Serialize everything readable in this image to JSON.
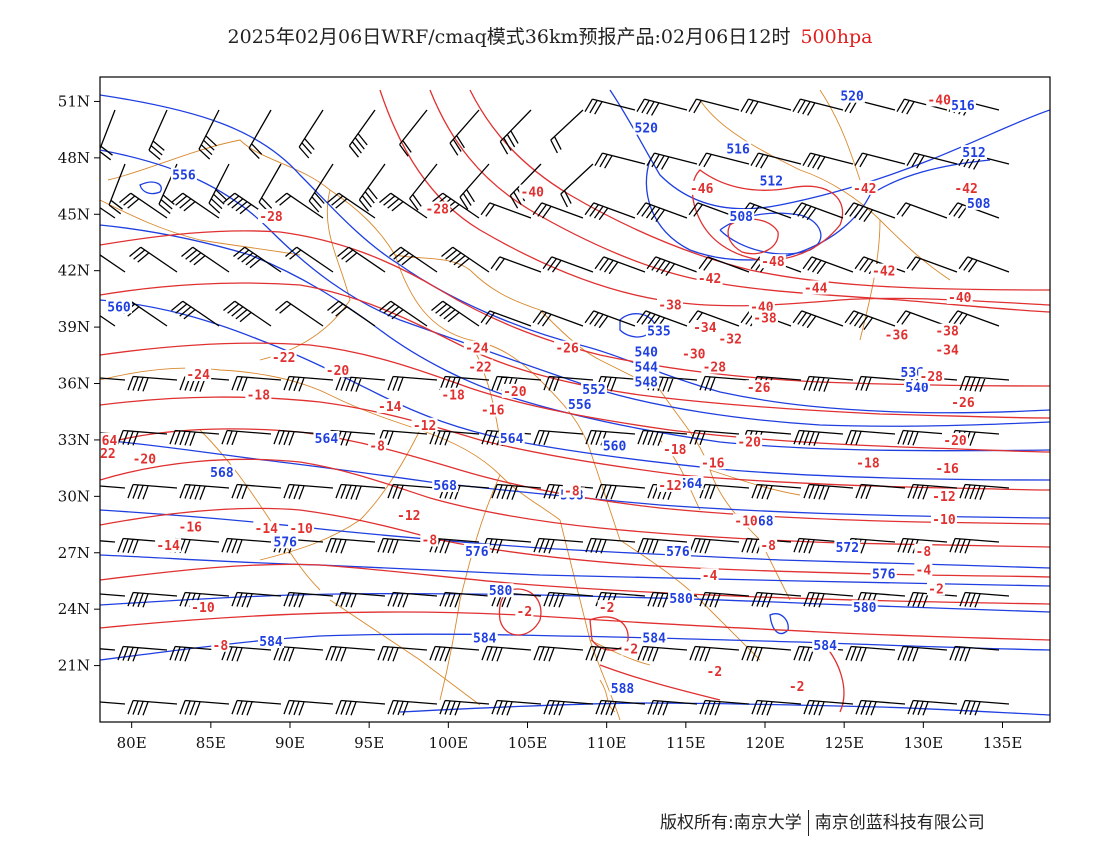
{
  "title": {
    "main": "2025年02月06日WRF/cmaq模式36km预报产品:02月06日12时",
    "level": "500hpa"
  },
  "footer": {
    "copyright": "版权所有:南京大学",
    "company": "南京创蓝科技有限公司"
  },
  "colors": {
    "geopotential": "#1f3fe0",
    "temperature": "#e03030",
    "border": "#d9892e",
    "wind": "#000000"
  },
  "axes": {
    "lat_ticks": [
      "51N",
      "48N",
      "45N",
      "42N",
      "39N",
      "36N",
      "33N",
      "30N",
      "27N",
      "24N",
      "21N"
    ],
    "lon_ticks": [
      "80E",
      "85E",
      "90E",
      "95E",
      "100E",
      "105E",
      "110E",
      "115E",
      "120E",
      "125E",
      "130E",
      "135E"
    ]
  },
  "height_labels": [
    {
      "text": "520",
      "lon": 112.5,
      "lat": 49.5
    },
    {
      "text": "520",
      "lon": 125.5,
      "lat": 51.2
    },
    {
      "text": "516",
      "lon": 132.5,
      "lat": 50.7
    },
    {
      "text": "516",
      "lon": 118.3,
      "lat": 48.4
    },
    {
      "text": "512",
      "lon": 133.2,
      "lat": 48.2
    },
    {
      "text": "512",
      "lon": 120.4,
      "lat": 46.7
    },
    {
      "text": "508",
      "lon": 118.5,
      "lat": 44.8
    },
    {
      "text": "508",
      "lon": 133.5,
      "lat": 45.5
    },
    {
      "text": "556",
      "lon": 83.3,
      "lat": 47.0
    },
    {
      "text": "560",
      "lon": 79.2,
      "lat": 40.0
    },
    {
      "text": "535",
      "lon": 113.3,
      "lat": 38.7
    },
    {
      "text": "540",
      "lon": 112.5,
      "lat": 37.6
    },
    {
      "text": "544",
      "lon": 112.5,
      "lat": 36.8
    },
    {
      "text": "548",
      "lon": 112.5,
      "lat": 36.0
    },
    {
      "text": "552",
      "lon": 109.2,
      "lat": 35.6
    },
    {
      "text": "556",
      "lon": 108.3,
      "lat": 34.8
    },
    {
      "text": "560",
      "lon": 110.5,
      "lat": 32.6
    },
    {
      "text": "564",
      "lon": 92.3,
      "lat": 33.0
    },
    {
      "text": "564",
      "lon": 104.0,
      "lat": 33.0
    },
    {
      "text": "564",
      "lon": 115.3,
      "lat": 30.6
    },
    {
      "text": "568",
      "lon": 85.7,
      "lat": 31.2
    },
    {
      "text": "568",
      "lon": 99.8,
      "lat": 30.5
    },
    {
      "text": "568",
      "lon": 107.8,
      "lat": 30.0
    },
    {
      "text": "568",
      "lon": 119.8,
      "lat": 28.6
    },
    {
      "text": "572",
      "lon": 125.2,
      "lat": 27.2
    },
    {
      "text": "576",
      "lon": 89.7,
      "lat": 27.5
    },
    {
      "text": "576",
      "lon": 101.8,
      "lat": 27.0
    },
    {
      "text": "576",
      "lon": 114.5,
      "lat": 27.0
    },
    {
      "text": "576",
      "lon": 127.5,
      "lat": 25.8
    },
    {
      "text": "580",
      "lon": 103.3,
      "lat": 24.9
    },
    {
      "text": "580",
      "lon": 114.7,
      "lat": 24.5
    },
    {
      "text": "580",
      "lon": 126.3,
      "lat": 24.0
    },
    {
      "text": "584",
      "lon": 88.8,
      "lat": 22.2
    },
    {
      "text": "584",
      "lon": 102.3,
      "lat": 22.4
    },
    {
      "text": "584",
      "lon": 113.0,
      "lat": 22.4
    },
    {
      "text": "584",
      "lon": 123.8,
      "lat": 22.0
    },
    {
      "text": "588",
      "lon": 111.0,
      "lat": 19.7
    },
    {
      "text": "536",
      "lon": 129.3,
      "lat": 36.5
    },
    {
      "text": "540",
      "lon": 129.6,
      "lat": 35.7
    }
  ],
  "temp_labels": [
    {
      "text": "-40",
      "lon": 131.0,
      "lat": 51.0
    },
    {
      "text": "-40",
      "lon": 105.3,
      "lat": 46.1
    },
    {
      "text": "-46",
      "lon": 116.0,
      "lat": 46.3
    },
    {
      "text": "-42",
      "lon": 126.3,
      "lat": 46.3
    },
    {
      "text": "-42",
      "lon": 132.7,
      "lat": 46.3
    },
    {
      "text": "-48",
      "lon": 120.5,
      "lat": 42.4
    },
    {
      "text": "-42",
      "lon": 116.5,
      "lat": 41.5
    },
    {
      "text": "-42",
      "lon": 127.5,
      "lat": 41.9
    },
    {
      "text": "-44",
      "lon": 123.2,
      "lat": 41.0
    },
    {
      "text": "-40",
      "lon": 119.8,
      "lat": 40.0
    },
    {
      "text": "-40",
      "lon": 132.3,
      "lat": 40.5
    },
    {
      "text": "-38",
      "lon": 114.0,
      "lat": 40.1
    },
    {
      "text": "-38",
      "lon": 120.0,
      "lat": 39.4
    },
    {
      "text": "-38",
      "lon": 131.5,
      "lat": 38.7
    },
    {
      "text": "-36",
      "lon": 128.3,
      "lat": 38.5
    },
    {
      "text": "-34",
      "lon": 116.2,
      "lat": 38.9
    },
    {
      "text": "-34",
      "lon": 131.5,
      "lat": 37.7
    },
    {
      "text": "-32",
      "lon": 117.8,
      "lat": 38.3
    },
    {
      "text": "-30",
      "lon": 115.5,
      "lat": 37.5
    },
    {
      "text": "-28",
      "lon": 116.8,
      "lat": 36.8
    },
    {
      "text": "-28",
      "lon": 130.5,
      "lat": 36.3
    },
    {
      "text": "-26",
      "lon": 119.6,
      "lat": 35.7
    },
    {
      "text": "-26",
      "lon": 132.5,
      "lat": 34.9
    },
    {
      "text": "-26",
      "lon": 107.5,
      "lat": 37.8
    },
    {
      "text": "-28",
      "lon": 99.3,
      "lat": 45.2
    },
    {
      "text": "-28",
      "lon": 88.8,
      "lat": 44.8
    },
    {
      "text": "-24",
      "lon": 84.2,
      "lat": 36.4
    },
    {
      "text": "-24",
      "lon": 101.8,
      "lat": 37.8
    },
    {
      "text": "-22",
      "lon": 89.6,
      "lat": 37.3
    },
    {
      "text": "-22",
      "lon": 102.0,
      "lat": 36.8
    },
    {
      "text": "-20",
      "lon": 93.0,
      "lat": 36.6
    },
    {
      "text": "-20",
      "lon": 104.2,
      "lat": 35.5
    },
    {
      "text": "-20",
      "lon": 119.0,
      "lat": 32.8
    },
    {
      "text": "-20",
      "lon": 132.0,
      "lat": 32.9
    },
    {
      "text": "-18",
      "lon": 88.0,
      "lat": 35.3
    },
    {
      "text": "-18",
      "lon": 100.3,
      "lat": 35.3
    },
    {
      "text": "-18",
      "lon": 114.3,
      "lat": 32.4
    },
    {
      "text": "-18",
      "lon": 126.5,
      "lat": 31.7
    },
    {
      "text": "-16",
      "lon": 102.8,
      "lat": 34.5
    },
    {
      "text": "-16",
      "lon": 116.7,
      "lat": 31.7
    },
    {
      "text": "-16",
      "lon": 131.5,
      "lat": 31.4
    },
    {
      "text": "-14",
      "lon": 96.3,
      "lat": 34.7
    },
    {
      "text": "-14",
      "lon": 82.3,
      "lat": 27.3
    },
    {
      "text": "-12",
      "lon": 98.5,
      "lat": 33.7
    },
    {
      "text": "-12",
      "lon": 114.0,
      "lat": 30.5
    },
    {
      "text": "-12",
      "lon": 97.5,
      "lat": 28.9
    },
    {
      "text": "-12",
      "lon": 131.3,
      "lat": 29.9
    },
    {
      "text": "-10",
      "lon": 90.7,
      "lat": 28.2
    },
    {
      "text": "-10",
      "lon": 118.8,
      "lat": 28.6
    },
    {
      "text": "-10",
      "lon": 131.3,
      "lat": 28.7
    },
    {
      "text": "-10",
      "lon": 84.5,
      "lat": 24.0
    },
    {
      "text": "-8",
      "lon": 95.5,
      "lat": 32.6
    },
    {
      "text": "-8",
      "lon": 107.8,
      "lat": 30.2
    },
    {
      "text": "-8",
      "lon": 120.2,
      "lat": 27.3
    },
    {
      "text": "-8",
      "lon": 130.0,
      "lat": 27.0
    },
    {
      "text": "-8",
      "lon": 98.8,
      "lat": 27.6
    },
    {
      "text": "-14",
      "lon": 88.5,
      "lat": 28.2
    },
    {
      "text": "-16",
      "lon": 83.7,
      "lat": 28.3
    },
    {
      "text": "-20",
      "lon": 80.8,
      "lat": 31.9
    },
    {
      "text": "22",
      "lon": 78.5,
      "lat": 32.2
    },
    {
      "text": "64",
      "lon": 78.6,
      "lat": 32.9
    },
    {
      "text": "-4",
      "lon": 116.5,
      "lat": 25.7
    },
    {
      "text": "-4",
      "lon": 130.0,
      "lat": 26.0
    },
    {
      "text": "-2",
      "lon": 104.8,
      "lat": 23.8
    },
    {
      "text": "-2",
      "lon": 110.0,
      "lat": 24.0
    },
    {
      "text": "-2",
      "lon": 130.8,
      "lat": 25.0
    },
    {
      "text": "-2",
      "lon": 111.5,
      "lat": 21.8
    },
    {
      "text": "-2",
      "lon": 116.8,
      "lat": 20.6
    },
    {
      "text": "-2",
      "lon": 122.0,
      "lat": 19.8
    },
    {
      "text": "-8",
      "lon": 85.6,
      "lat": 22.0
    }
  ]
}
